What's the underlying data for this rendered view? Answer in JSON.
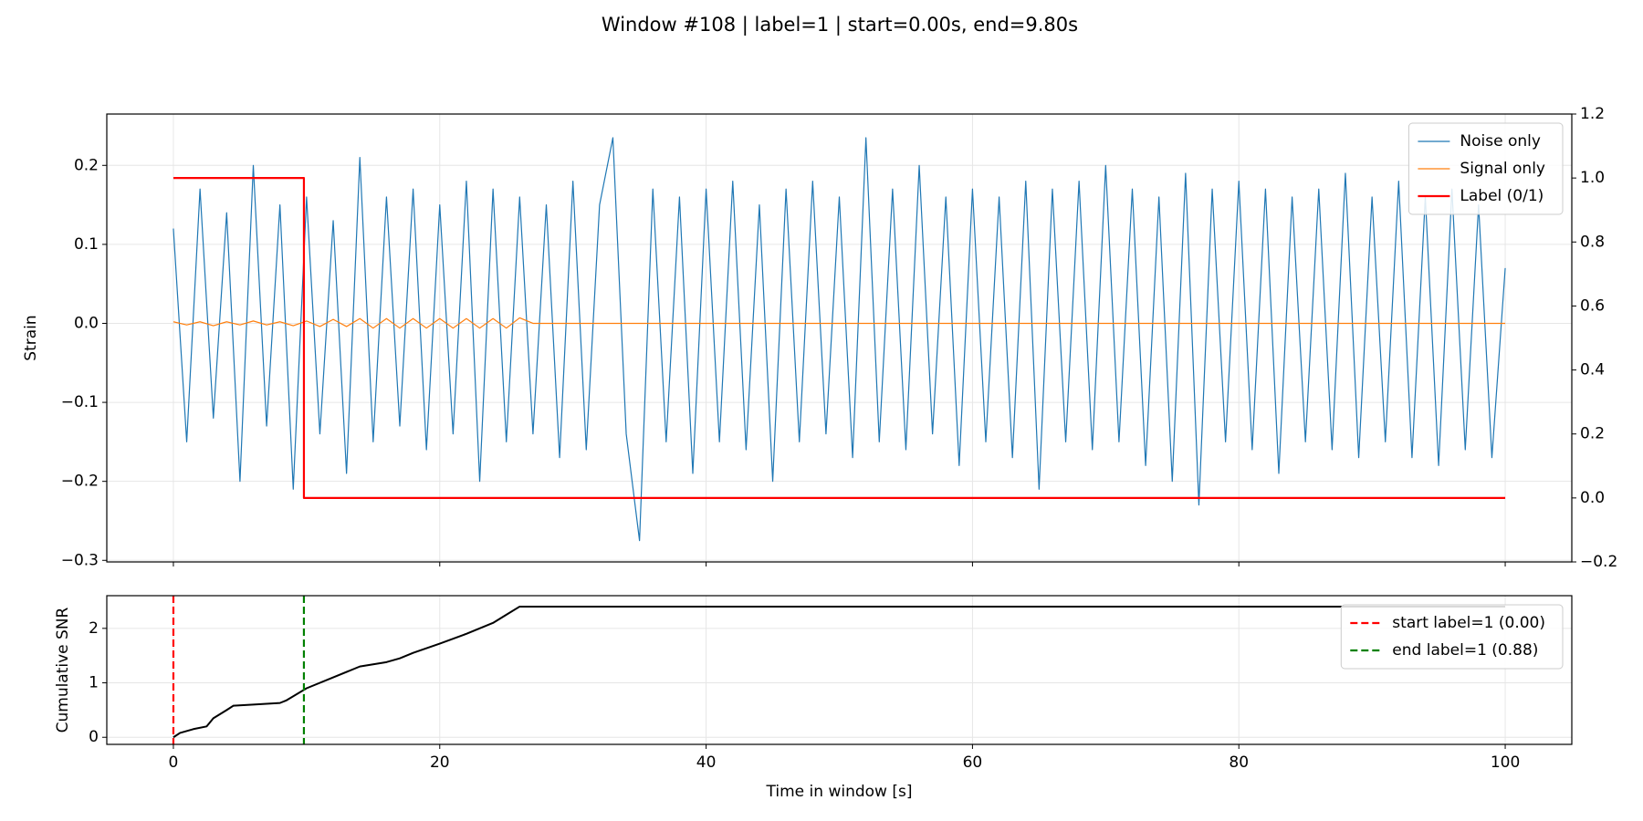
{
  "chart_data": [
    {
      "type": "line",
      "title": "Window #108 | label=1 | start=0.00s, end=9.80s",
      "ylabel": "Strain",
      "xlim": [
        -5,
        105
      ],
      "xticks": [
        0,
        20,
        40,
        60,
        80,
        100
      ],
      "ylim": [
        -0.302,
        0.265
      ],
      "yticks": [
        {
          "value": -0.3,
          "label": "−0.3"
        },
        {
          "value": -0.2,
          "label": "−0.2"
        },
        {
          "value": -0.1,
          "label": "−0.1"
        },
        {
          "value": 0,
          "label": "0.0"
        },
        {
          "value": 0.1,
          "label": "0.1"
        },
        {
          "value": 0.2,
          "label": "0.2"
        }
      ],
      "y2lim": [
        -0.2,
        1.2
      ],
      "y2ticks": [
        {
          "value": -0.2,
          "label": "−0.2"
        },
        {
          "value": 0,
          "label": "0.0"
        },
        {
          "value": 0.2,
          "label": "0.2"
        },
        {
          "value": 0.4,
          "label": "0.4"
        },
        {
          "value": 0.6,
          "label": "0.6"
        },
        {
          "value": 0.8,
          "label": "0.8"
        },
        {
          "value": 1.0,
          "label": "1.0"
        },
        {
          "value": 1.2,
          "label": "1.2"
        }
      ],
      "grid": true,
      "legend": "upper right",
      "xtick_labels": false,
      "series": [
        {
          "name": "Noise only",
          "color": "#1f77b4",
          "width": 1.2,
          "x": [
            0,
            1,
            2,
            3,
            4,
            5,
            6,
            7,
            8,
            9,
            10,
            11,
            12,
            13,
            14,
            15,
            16,
            17,
            18,
            19,
            20,
            21,
            22,
            23,
            24,
            25,
            26,
            27,
            28,
            29,
            30,
            31,
            32,
            33,
            34,
            35,
            36,
            37,
            38,
            39,
            40,
            41,
            42,
            43,
            44,
            45,
            46,
            47,
            48,
            49,
            50,
            51,
            52,
            53,
            54,
            55,
            56,
            57,
            58,
            59,
            60,
            61,
            62,
            63,
            64,
            65,
            66,
            67,
            68,
            69,
            70,
            71,
            72,
            73,
            74,
            75,
            76,
            77,
            78,
            79,
            80,
            81,
            82,
            83,
            84,
            85,
            86,
            87,
            88,
            89,
            90,
            91,
            92,
            93,
            94,
            95,
            96,
            97,
            98,
            99,
            100
          ],
          "values": [
            0.12,
            -0.15,
            0.17,
            -0.12,
            0.14,
            -0.2,
            0.2,
            -0.13,
            0.15,
            -0.21,
            0.16,
            -0.14,
            0.13,
            -0.19,
            0.21,
            -0.15,
            0.16,
            -0.13,
            0.17,
            -0.16,
            0.15,
            -0.14,
            0.18,
            -0.2,
            0.17,
            -0.15,
            0.16,
            -0.14,
            0.15,
            -0.17,
            0.18,
            -0.16,
            0.15,
            0.235,
            -0.14,
            -0.275,
            0.17,
            -0.15,
            0.16,
            -0.19,
            0.17,
            -0.15,
            0.18,
            -0.16,
            0.15,
            -0.2,
            0.17,
            -0.15,
            0.18,
            -0.14,
            0.16,
            -0.17,
            0.235,
            -0.15,
            0.17,
            -0.16,
            0.2,
            -0.14,
            0.16,
            -0.18,
            0.17,
            -0.15,
            0.16,
            -0.17,
            0.18,
            -0.21,
            0.17,
            -0.15,
            0.18,
            -0.16,
            0.2,
            -0.15,
            0.17,
            -0.18,
            0.16,
            -0.2,
            0.19,
            -0.23,
            0.17,
            -0.15,
            0.18,
            -0.16,
            0.17,
            -0.19,
            0.16,
            -0.15,
            0.17,
            -0.16,
            0.19,
            -0.17,
            0.16,
            -0.15,
            0.18,
            -0.17,
            0.16,
            -0.18,
            0.17,
            -0.16,
            0.15,
            -0.17,
            0.07
          ]
        },
        {
          "name": "Signal only",
          "color": "#ff7f0e",
          "width": 1.2,
          "x": [
            0,
            1,
            2,
            3,
            4,
            5,
            6,
            7,
            8,
            9,
            10,
            11,
            12,
            13,
            14,
            15,
            16,
            17,
            18,
            19,
            20,
            21,
            22,
            23,
            24,
            25,
            26,
            27,
            100
          ],
          "values": [
            0.002,
            -0.002,
            0.002,
            -0.003,
            0.002,
            -0.002,
            0.003,
            -0.002,
            0.002,
            -0.003,
            0.003,
            -0.004,
            0.005,
            -0.004,
            0.006,
            -0.006,
            0.006,
            -0.006,
            0.006,
            -0.006,
            0.006,
            -0.006,
            0.006,
            -0.006,
            0.006,
            -0.006,
            0.007,
            0,
            0
          ]
        },
        {
          "name": "Label (0/1)",
          "color": "#ff0000",
          "width": 2.2,
          "axis": "y2",
          "x": [
            0,
            9.8,
            9.8,
            100
          ],
          "values": [
            1,
            1,
            0,
            0
          ]
        }
      ]
    },
    {
      "type": "line",
      "ylabel": "Cumulative SNR",
      "xlabel": "Time in window [s]",
      "xlim": [
        -5,
        105
      ],
      "xticks": [
        0,
        20,
        40,
        60,
        80,
        100
      ],
      "ylim": [
        -0.13,
        2.6
      ],
      "yticks": [
        0,
        1,
        2
      ],
      "grid": true,
      "legend": "upper right",
      "xtick_labels": true,
      "series": [
        {
          "color": "#000000",
          "width": 2,
          "x": [
            0,
            0.5,
            1.5,
            2.5,
            3,
            4,
            4.5,
            6,
            8,
            8.5,
            10,
            12,
            14,
            16,
            17,
            18,
            20,
            22,
            24,
            25,
            26,
            100
          ],
          "values": [
            0,
            0.08,
            0.15,
            0.2,
            0.35,
            0.5,
            0.58,
            0.6,
            0.63,
            0.68,
            0.9,
            1.1,
            1.3,
            1.38,
            1.45,
            1.55,
            1.72,
            1.9,
            2.1,
            2.25,
            2.4,
            2.4
          ]
        }
      ],
      "vlines": [
        {
          "name": "start label=1 (0.00)",
          "color": "#ff0000",
          "x": 0,
          "dash": true
        },
        {
          "name": "end label=1 (0.88)",
          "color": "#008000",
          "x": 9.8,
          "dash": true
        }
      ]
    }
  ]
}
